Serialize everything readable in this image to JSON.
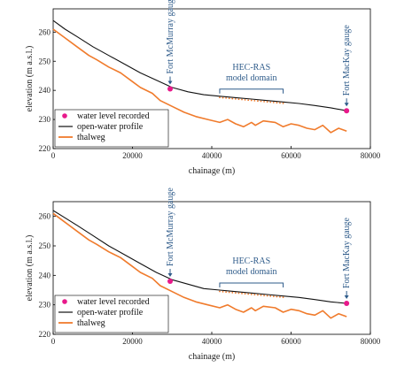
{
  "chart_data": [
    {
      "type": "line",
      "xlabel": "chainage (m)",
      "ylabel": "elevation (m a.s.l.)",
      "xlim": [
        0,
        80000
      ],
      "ylim": [
        220,
        268
      ],
      "xticks": [
        "0",
        "20000",
        "40000",
        "60000",
        "80000"
      ],
      "yticks": [
        "220",
        "230",
        "240",
        "250",
        "260"
      ],
      "legend_position": "bottom-left",
      "legend": [
        "water level recorded",
        "open-water profile",
        "thalweg"
      ],
      "annotations": {
        "fort_mcmurray": "Fort McMurray gauge",
        "hec_ras": [
          "HEC-RAS",
          "model domain"
        ],
        "fort_mackay": "Fort MacKay gauge"
      },
      "series": [
        {
          "name": "open-water profile",
          "x": [
            0,
            3000,
            6000,
            10000,
            14000,
            18000,
            22000,
            26000,
            30000,
            34000,
            38000,
            42000,
            46000,
            50000,
            54000,
            58000,
            62000,
            66000,
            70000,
            74000
          ],
          "y": [
            264,
            261,
            258.5,
            255,
            252,
            249,
            246,
            243.5,
            241,
            239.5,
            238.5,
            238,
            237.5,
            237,
            236.5,
            236,
            235.5,
            234.8,
            234,
            233
          ]
        },
        {
          "name": "thalweg",
          "x": [
            0,
            3000,
            6000,
            9000,
            11000,
            14000,
            17000,
            20000,
            22000,
            25000,
            27000,
            30000,
            33000,
            36000,
            39000,
            42000,
            44000,
            46000,
            48000,
            50000,
            51000,
            53000,
            56000,
            58000,
            60000,
            62000,
            64000,
            66000,
            68000,
            70000,
            72000,
            74000
          ],
          "y": [
            261,
            258,
            255,
            252,
            250.5,
            248,
            246,
            243,
            241,
            239,
            236.5,
            234.5,
            232.5,
            231,
            230,
            229,
            230,
            228.5,
            227.5,
            229,
            228,
            229.5,
            229,
            227.5,
            228.5,
            228,
            227,
            226.5,
            228,
            225.5,
            227,
            226
          ]
        },
        {
          "name": "water level recorded",
          "x": [
            29500,
            74000
          ],
          "y": [
            240.5,
            233
          ]
        }
      ]
    },
    {
      "type": "line",
      "xlabel": "chainage (m)",
      "ylabel": "elevation (m a.s.l.)",
      "xlim": [
        0,
        80000
      ],
      "ylim": [
        220,
        265
      ],
      "xticks": [
        "0",
        "20000",
        "40000",
        "60000",
        "80000"
      ],
      "yticks": [
        "220",
        "230",
        "240",
        "250",
        "260"
      ],
      "legend_position": "bottom-left",
      "legend": [
        "water level recorded",
        "open-water profile",
        "thalweg"
      ],
      "annotations": {
        "fort_mcmurray": "Fort McMurray gauge",
        "hec_ras": [
          "HEC-RAS",
          "model domain"
        ],
        "fort_mackay": "Fort MacKay gauge"
      },
      "series": [
        {
          "name": "open-water profile",
          "x": [
            0,
            3000,
            6000,
            10000,
            14000,
            18000,
            22000,
            26000,
            30000,
            34000,
            38000,
            42000,
            46000,
            50000,
            54000,
            58000,
            62000,
            66000,
            70000,
            74000
          ],
          "y": [
            262,
            259.5,
            257,
            253.5,
            250,
            247,
            244,
            241,
            238.5,
            237,
            235.5,
            235,
            234.5,
            234,
            233.5,
            233,
            232.5,
            231.8,
            231,
            230.5
          ]
        },
        {
          "name": "thalweg",
          "x": [
            0,
            3000,
            6000,
            9000,
            11000,
            14000,
            17000,
            20000,
            22000,
            25000,
            27000,
            30000,
            33000,
            36000,
            39000,
            42000,
            44000,
            46000,
            48000,
            50000,
            51000,
            53000,
            56000,
            58000,
            60000,
            62000,
            64000,
            66000,
            68000,
            70000,
            72000,
            74000
          ],
          "y": [
            261,
            258,
            255,
            252,
            250.5,
            248,
            246,
            243,
            241,
            239,
            236.5,
            234.5,
            232.5,
            231,
            230,
            229,
            230,
            228.5,
            227.5,
            229,
            228,
            229.5,
            229,
            227.5,
            228.5,
            228,
            227,
            226.5,
            228,
            225.5,
            227,
            226
          ]
        },
        {
          "name": "water level recorded",
          "x": [
            29500,
            74000
          ],
          "y": [
            238,
            230.5
          ]
        }
      ]
    }
  ]
}
